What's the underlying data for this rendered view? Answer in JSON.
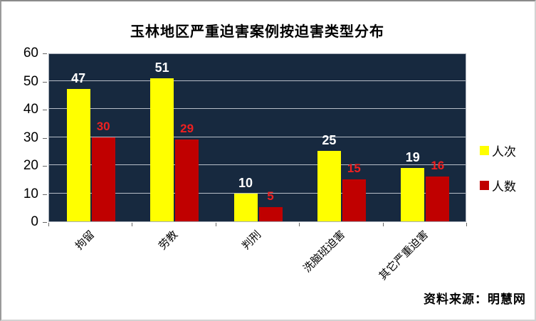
{
  "title": "玉林地区严重迫害案例按迫害类型分布",
  "source_note": "资料来源：明慧网",
  "legend": {
    "position": "right",
    "items": [
      {
        "label": "人次",
        "color": "#ffff00"
      },
      {
        "label": "人数",
        "color": "#c00000"
      }
    ]
  },
  "colors": {
    "plot_background": "#17293f",
    "gridline": "#b7bec8",
    "series_yellow": "#ffff00",
    "series_red": "#c00000",
    "data_label_yellow_series": "#ffffff",
    "data_label_red_series": "#ee2020",
    "axis_text": "#000000"
  },
  "chart_data": {
    "type": "bar",
    "title": "玉林地区严重迫害案例按迫害类型分布",
    "categories": [
      "拘留",
      "劳教",
      "判刑",
      "洗脑班迫害",
      "其它严重迫害"
    ],
    "series": [
      {
        "name": "人次",
        "color": "#ffff00",
        "values": [
          47,
          51,
          10,
          25,
          19
        ]
      },
      {
        "name": "人数",
        "color": "#c00000",
        "values": [
          30,
          29,
          5,
          15,
          16
        ]
      }
    ],
    "xlabel": "",
    "ylabel": "",
    "ylim": [
      0,
      60
    ],
    "yticks": [
      0,
      10,
      20,
      30,
      40,
      50,
      60
    ],
    "grid": "horizontal",
    "legend_position": "right",
    "data_labels": true,
    "source": "资料来源：明慧网"
  }
}
